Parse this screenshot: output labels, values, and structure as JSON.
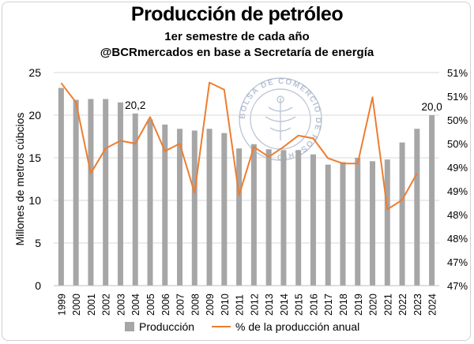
{
  "header": {
    "title": "Producción de petróleo",
    "subtitle": "1er semestre de cada año",
    "source": "@BCRmercados en base a Secretaría de energía"
  },
  "watermark": {
    "text": "BOLSA DE COMERCIO DE ROSARIO",
    "color": "#8a9ab8"
  },
  "colors": {
    "bars": "#a6a6a6",
    "line": "#ed7d31",
    "text": "#000000",
    "grid": "#d9d9d9"
  },
  "chart_data": {
    "type": "bar",
    "title": "Producción de petróleo",
    "subtitle": "1er semestre de cada año",
    "categories": [
      "1999",
      "2000",
      "2001",
      "2002",
      "2003",
      "2004",
      "2005",
      "2006",
      "2007",
      "2008",
      "2009",
      "2010",
      "2011",
      "2012",
      "2013",
      "2014",
      "2015",
      "2016",
      "2017",
      "2018",
      "2019",
      "2020",
      "2021",
      "2022",
      "2023",
      "2024"
    ],
    "ylabel": "Millones de metros cúbcios",
    "ylim": [
      0,
      25
    ],
    "yticks": [
      "0",
      "5",
      "10",
      "15",
      "20",
      "25"
    ],
    "y2lim": [
      47.0,
      51.5
    ],
    "y2ticks": [
      "47%",
      "47%",
      "48%",
      "48%",
      "49%",
      "49%",
      "50%",
      "50%",
      "51%",
      "51%"
    ],
    "grid": true,
    "legend": "bottom",
    "series": [
      {
        "name": "Producción",
        "type": "bar",
        "axis": "left",
        "values": [
          23.2,
          21.8,
          21.9,
          21.9,
          21.5,
          20.2,
          19.5,
          18.9,
          18.4,
          18.2,
          18.4,
          17.9,
          16.1,
          16.6,
          16.0,
          15.9,
          15.9,
          15.4,
          14.2,
          14.5,
          15.0,
          14.6,
          14.8,
          16.8,
          18.4,
          20.0
        ]
      },
      {
        "name": "% de la producción anual",
        "type": "line",
        "axis": "right",
        "values": [
          51.28,
          50.87,
          49.37,
          49.9,
          50.06,
          50.0,
          50.56,
          49.84,
          50.0,
          48.96,
          51.29,
          51.14,
          48.91,
          49.93,
          49.72,
          49.93,
          50.17,
          50.11,
          49.69,
          49.58,
          49.58,
          50.98,
          48.61,
          48.81,
          49.37,
          null
        ]
      }
    ],
    "annotations": [
      {
        "category": "2004",
        "text": "20,2"
      },
      {
        "category": "2024",
        "text": "20,0"
      }
    ]
  }
}
